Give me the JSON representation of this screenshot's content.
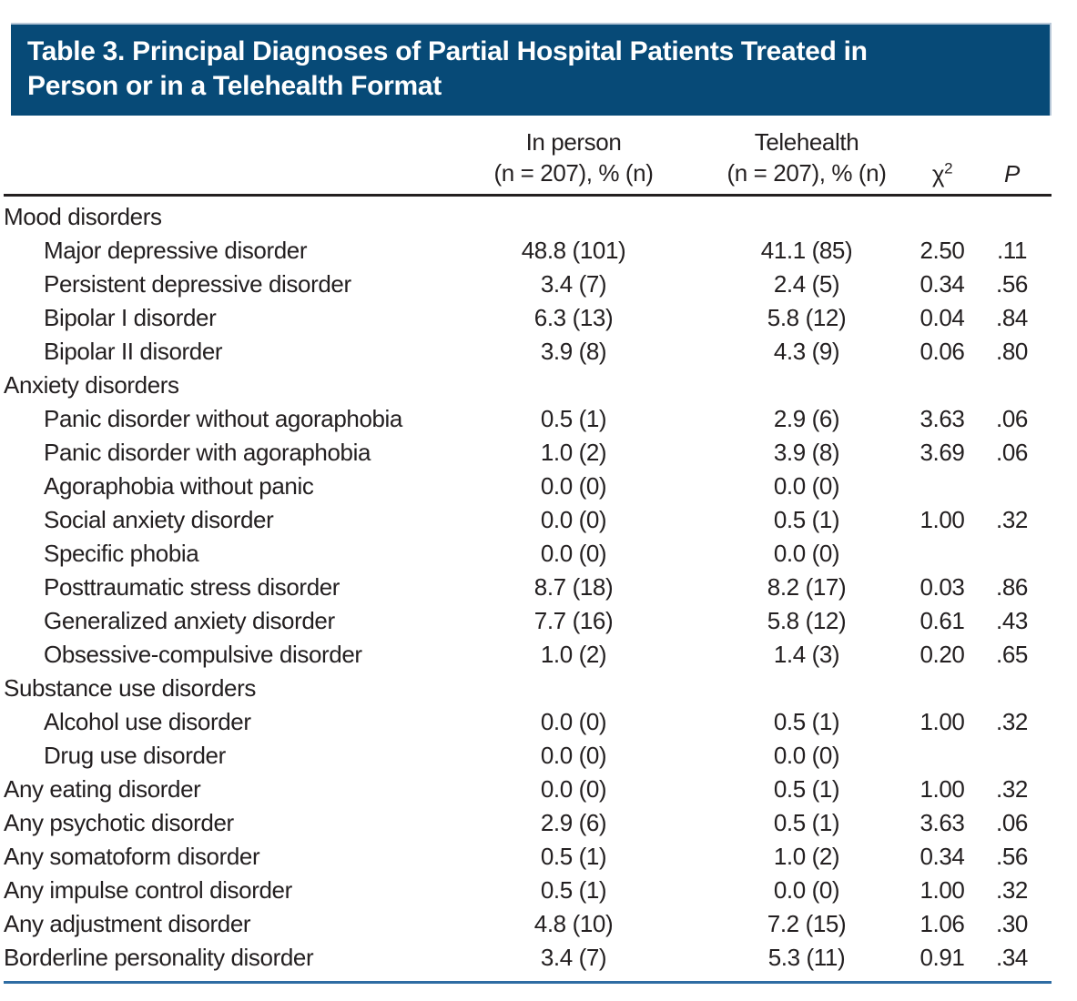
{
  "title": {
    "line1": "Table 3. Principal Diagnoses of Partial Hospital Patients Treated in",
    "line2": "Person or in a Telehealth Format"
  },
  "columns": {
    "in_person_line1": "In person",
    "in_person_line2": "(n = 207), % (n)",
    "telehealth_line1": "Telehealth",
    "telehealth_line2": "(n = 207), % (n)",
    "chi_symbol": "χ",
    "chi_sup": "2",
    "p_label": "P"
  },
  "colors": {
    "header_bg": "#074a77",
    "header_edge": "#b9c8d8",
    "bottom_rule": "#2e6ca3",
    "header_rule": "#231f20",
    "text": "#231f20"
  },
  "rows": [
    {
      "label": "Mood disorders",
      "indent": false,
      "in_person": "",
      "telehealth": "",
      "chi2": "",
      "p": ""
    },
    {
      "label": "Major depressive disorder",
      "indent": true,
      "in_person": "48.8 (101)",
      "telehealth": "41.1 (85)",
      "chi2": "2.50",
      "p": ".11"
    },
    {
      "label": "Persistent depressive disorder",
      "indent": true,
      "in_person": "3.4 (7)",
      "telehealth": "2.4 (5)",
      "chi2": "0.34",
      "p": ".56"
    },
    {
      "label": "Bipolar I disorder",
      "indent": true,
      "in_person": "6.3 (13)",
      "telehealth": "5.8 (12)",
      "chi2": "0.04",
      "p": ".84"
    },
    {
      "label": "Bipolar II disorder",
      "indent": true,
      "in_person": "3.9 (8)",
      "telehealth": "4.3 (9)",
      "chi2": "0.06",
      "p": ".80"
    },
    {
      "label": "Anxiety disorders",
      "indent": false,
      "in_person": "",
      "telehealth": "",
      "chi2": "",
      "p": ""
    },
    {
      "label": "Panic disorder without agoraphobia",
      "indent": true,
      "in_person": "0.5 (1)",
      "telehealth": "2.9 (6)",
      "chi2": "3.63",
      "p": ".06"
    },
    {
      "label": "Panic disorder with agoraphobia",
      "indent": true,
      "in_person": "1.0 (2)",
      "telehealth": "3.9 (8)",
      "chi2": "3.69",
      "p": ".06"
    },
    {
      "label": "Agoraphobia without panic",
      "indent": true,
      "in_person": "0.0 (0)",
      "telehealth": "0.0 (0)",
      "chi2": "",
      "p": ""
    },
    {
      "label": "Social anxiety disorder",
      "indent": true,
      "in_person": "0.0 (0)",
      "telehealth": "0.5 (1)",
      "chi2": "1.00",
      "p": ".32"
    },
    {
      "label": "Specific phobia",
      "indent": true,
      "in_person": "0.0 (0)",
      "telehealth": "0.0 (0)",
      "chi2": "",
      "p": ""
    },
    {
      "label": "Posttraumatic stress disorder",
      "indent": true,
      "in_person": "8.7 (18)",
      "telehealth": "8.2 (17)",
      "chi2": "0.03",
      "p": ".86"
    },
    {
      "label": "Generalized anxiety disorder",
      "indent": true,
      "in_person": "7.7 (16)",
      "telehealth": "5.8 (12)",
      "chi2": "0.61",
      "p": ".43"
    },
    {
      "label": "Obsessive-compulsive disorder",
      "indent": true,
      "in_person": "1.0 (2)",
      "telehealth": "1.4 (3)",
      "chi2": "0.20",
      "p": ".65"
    },
    {
      "label": "Substance use disorders",
      "indent": false,
      "in_person": "",
      "telehealth": "",
      "chi2": "",
      "p": ""
    },
    {
      "label": "Alcohol use disorder",
      "indent": true,
      "in_person": "0.0 (0)",
      "telehealth": "0.5 (1)",
      "chi2": "1.00",
      "p": ".32"
    },
    {
      "label": "Drug use disorder",
      "indent": true,
      "in_person": "0.0 (0)",
      "telehealth": "0.0 (0)",
      "chi2": "",
      "p": ""
    },
    {
      "label": "Any eating disorder",
      "indent": false,
      "in_person": "0.0 (0)",
      "telehealth": "0.5 (1)",
      "chi2": "1.00",
      "p": ".32"
    },
    {
      "label": "Any psychotic disorder",
      "indent": false,
      "in_person": "2.9 (6)",
      "telehealth": "0.5 (1)",
      "chi2": "3.63",
      "p": ".06"
    },
    {
      "label": "Any somatoform disorder",
      "indent": false,
      "in_person": "0.5 (1)",
      "telehealth": "1.0 (2)",
      "chi2": "0.34",
      "p": ".56"
    },
    {
      "label": "Any impulse control disorder",
      "indent": false,
      "in_person": "0.5 (1)",
      "telehealth": "0.0 (0)",
      "chi2": "1.00",
      "p": ".32"
    },
    {
      "label": "Any adjustment disorder",
      "indent": false,
      "in_person": "4.8 (10)",
      "telehealth": "7.2 (15)",
      "chi2": "1.06",
      "p": ".30"
    },
    {
      "label": "Borderline personality disorder",
      "indent": false,
      "in_person": "3.4 (7)",
      "telehealth": "5.3 (11)",
      "chi2": "0.91",
      "p": ".34"
    }
  ]
}
